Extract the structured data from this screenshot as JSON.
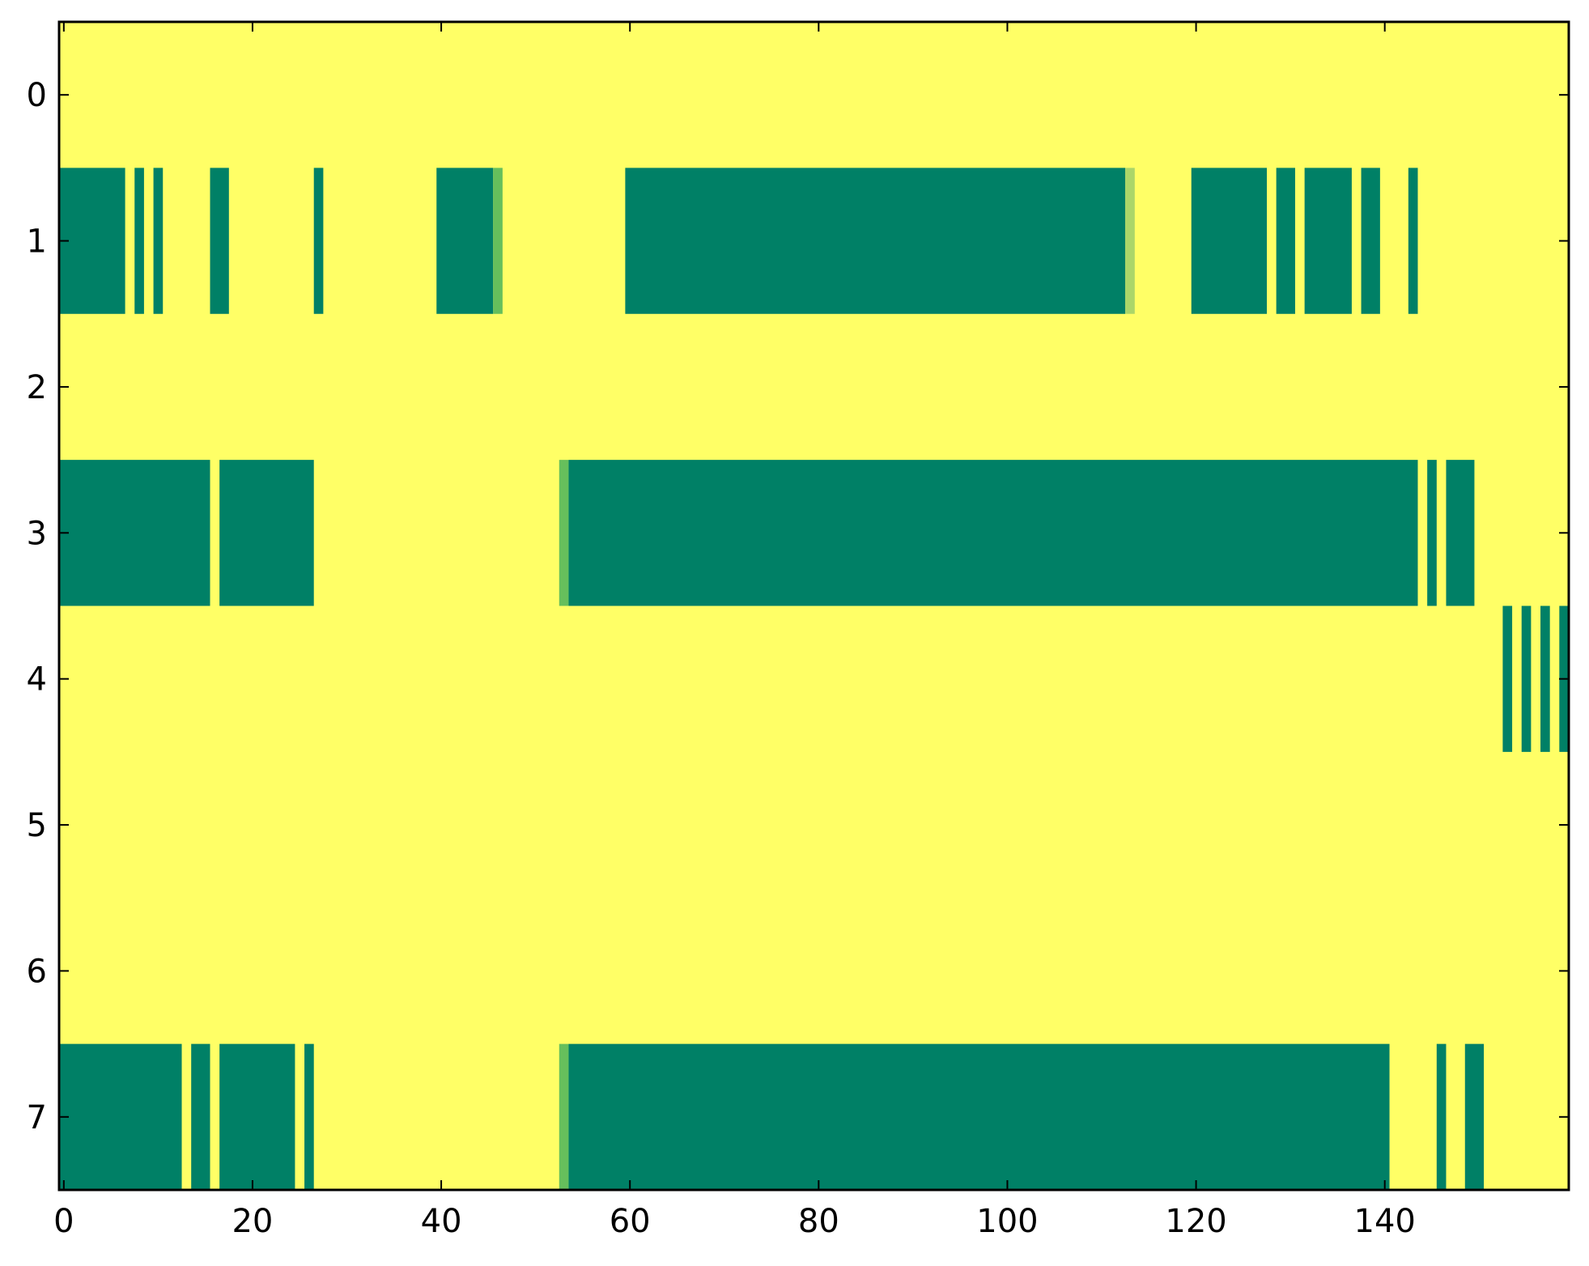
{
  "chart_data": {
    "type": "heatmap",
    "title": "",
    "xlabel": "",
    "ylabel": "",
    "xlim": [
      -0.5,
      159.5
    ],
    "ylim": [
      7.5,
      -0.5
    ],
    "x_ticks": [
      0,
      20,
      40,
      60,
      80,
      100,
      120,
      140
    ],
    "x_tick_labels": [
      "0",
      "20",
      "40",
      "60",
      "80",
      "100",
      "120",
      "140"
    ],
    "y_ticks": [
      0,
      1,
      2,
      3,
      4,
      5,
      6,
      7
    ],
    "y_tick_labels": [
      "0",
      "1",
      "2",
      "3",
      "4",
      "5",
      "6",
      "7"
    ],
    "grid": false,
    "background_value": 0,
    "colors": {
      "0": "#ffff66",
      "0.5": "#abd669",
      "0.7": "#66bf5c",
      "1": "#008066"
    },
    "segments": [
      {
        "row": 1,
        "start": 0,
        "end": 6,
        "value": 1
      },
      {
        "row": 1,
        "start": 8,
        "end": 8,
        "value": 1
      },
      {
        "row": 1,
        "start": 10,
        "end": 10,
        "value": 1
      },
      {
        "row": 1,
        "start": 16,
        "end": 17,
        "value": 1
      },
      {
        "row": 1,
        "start": 27,
        "end": 27,
        "value": 1
      },
      {
        "row": 1,
        "start": 40,
        "end": 45,
        "value": 1
      },
      {
        "row": 1,
        "start": 46,
        "end": 46,
        "value": 0.7
      },
      {
        "row": 1,
        "start": 60,
        "end": 112,
        "value": 1
      },
      {
        "row": 1,
        "start": 113,
        "end": 113,
        "value": 0.5
      },
      {
        "row": 1,
        "start": 120,
        "end": 127,
        "value": 1
      },
      {
        "row": 1,
        "start": 129,
        "end": 130,
        "value": 1
      },
      {
        "row": 1,
        "start": 132,
        "end": 136,
        "value": 1
      },
      {
        "row": 1,
        "start": 138,
        "end": 139,
        "value": 1
      },
      {
        "row": 1,
        "start": 143,
        "end": 143,
        "value": 1
      },
      {
        "row": 3,
        "start": 0,
        "end": 15,
        "value": 1
      },
      {
        "row": 3,
        "start": 17,
        "end": 26,
        "value": 1
      },
      {
        "row": 3,
        "start": 53,
        "end": 53,
        "value": 0.7
      },
      {
        "row": 3,
        "start": 54,
        "end": 143,
        "value": 1
      },
      {
        "row": 3,
        "start": 145,
        "end": 145,
        "value": 1
      },
      {
        "row": 3,
        "start": 147,
        "end": 149,
        "value": 1
      },
      {
        "row": 4,
        "start": 153,
        "end": 153,
        "value": 1
      },
      {
        "row": 4,
        "start": 155,
        "end": 155,
        "value": 1
      },
      {
        "row": 4,
        "start": 157,
        "end": 157,
        "value": 1
      },
      {
        "row": 4,
        "start": 159,
        "end": 159,
        "value": 1
      },
      {
        "row": 7,
        "start": 0,
        "end": 12,
        "value": 1
      },
      {
        "row": 7,
        "start": 14,
        "end": 15,
        "value": 1
      },
      {
        "row": 7,
        "start": 17,
        "end": 24,
        "value": 1
      },
      {
        "row": 7,
        "start": 26,
        "end": 26,
        "value": 1
      },
      {
        "row": 7,
        "start": 53,
        "end": 53,
        "value": 0.7
      },
      {
        "row": 7,
        "start": 54,
        "end": 140,
        "value": 1
      },
      {
        "row": 7,
        "start": 146,
        "end": 146,
        "value": 1
      },
      {
        "row": 7,
        "start": 149,
        "end": 150,
        "value": 1
      }
    ]
  }
}
